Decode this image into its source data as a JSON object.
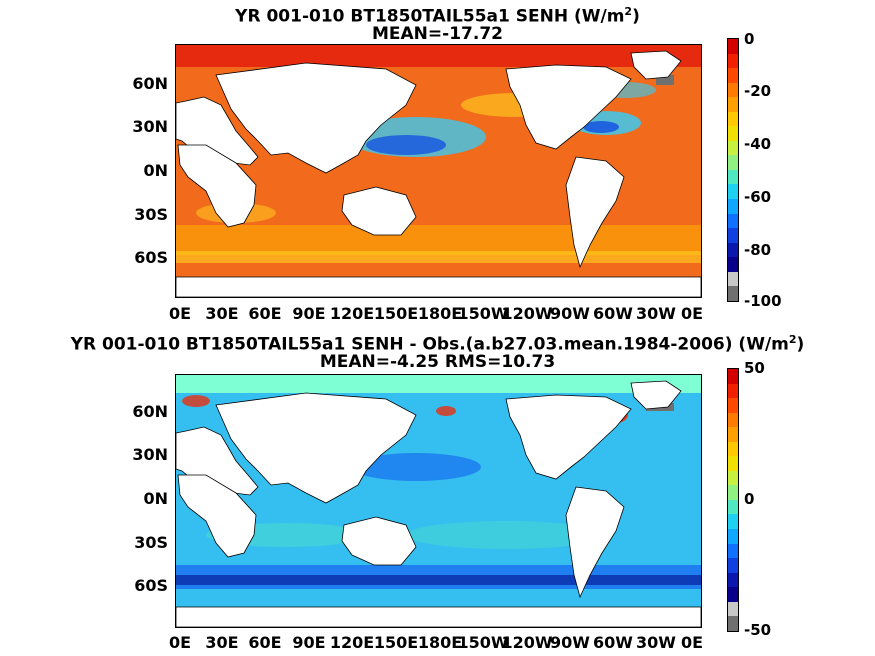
{
  "panels": [
    {
      "title_main": "YR 001-010 BT1850TAIL55a1  SENH (W/m",
      "title_sup": "2",
      "title_close": ")",
      "title_line2": "MEAN=-17.72",
      "colorbar_ticks": [
        "0",
        "-20",
        "-40",
        "-60",
        "-80",
        "-100"
      ],
      "colorbar_range": [
        -100,
        0
      ],
      "ocean_color": "#f26a1b",
      "accent_colors": [
        "#ffd21f",
        "#2fd0ff",
        "#1555e0",
        "#e83010"
      ]
    },
    {
      "title_main": "YR 001-010 BT1850TAIL55a1 SENH - Obs.(a.b27.03.mean.1984-2006) (W/m",
      "title_sup": "2",
      "title_close": ")",
      "title_line2": "MEAN=-4.25 RMS=10.73",
      "colorbar_ticks": [
        "50",
        "0",
        "-50"
      ],
      "colorbar_range": [
        -50,
        50
      ],
      "ocean_color": "#35bff0",
      "accent_colors": [
        "#7fffd4",
        "#1a6ff0",
        "#0a2aa8",
        "#e83010"
      ]
    }
  ],
  "lat_labels": [
    "60N",
    "30N",
    "0N",
    "30S",
    "60S"
  ],
  "lon_labels": [
    "0E",
    "30E",
    "60E",
    "90E",
    "120E",
    "150E",
    "180E",
    "150W",
    "120W",
    "90W",
    "60W",
    "30W",
    "0E"
  ],
  "colormap": [
    "#d40000",
    "#f02000",
    "#ff4a00",
    "#ff7a00",
    "#ffa000",
    "#ffc800",
    "#f0e000",
    "#c8f040",
    "#90f080",
    "#50e8c0",
    "#20d0f0",
    "#10a8ff",
    "#1070ff",
    "#1040e0",
    "#0a18b0",
    "#08008a",
    "#c8c8c8",
    "#707070"
  ]
}
